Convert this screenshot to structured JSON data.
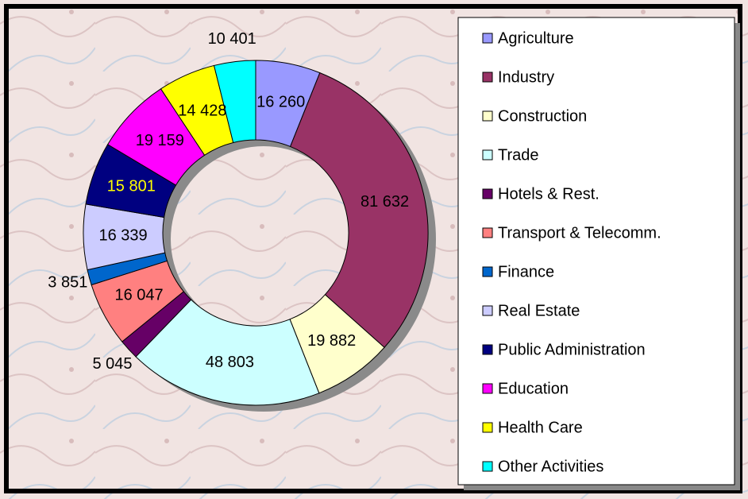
{
  "chart_data": {
    "type": "donut",
    "categories": [
      "Agriculture",
      "Industry",
      "Construction",
      "Trade",
      "Hotels & Rest.",
      "Transport & Telecomm.",
      "Finance",
      "Real Estate",
      "Public Administration",
      "Education",
      "Health Care",
      "Other Activities"
    ],
    "values": [
      16260,
      81632,
      19882,
      48803,
      5045,
      16047,
      3851,
      16339,
      15801,
      19159,
      14428,
      10401
    ],
    "value_labels": [
      "16 260",
      "81 632",
      "19 882",
      "48 803",
      "5 045",
      "16 047",
      "3 851",
      "16 339",
      "15 801",
      "19 159",
      "14 428",
      "10 401"
    ],
    "colors": [
      "#9999ff",
      "#993366",
      "#ffffcc",
      "#ccffff",
      "#660066",
      "#ff8080",
      "#0066cc",
      "#ccccff",
      "#000080",
      "#ff00ff",
      "#ffff00",
      "#00ffff"
    ],
    "legend": "right"
  }
}
